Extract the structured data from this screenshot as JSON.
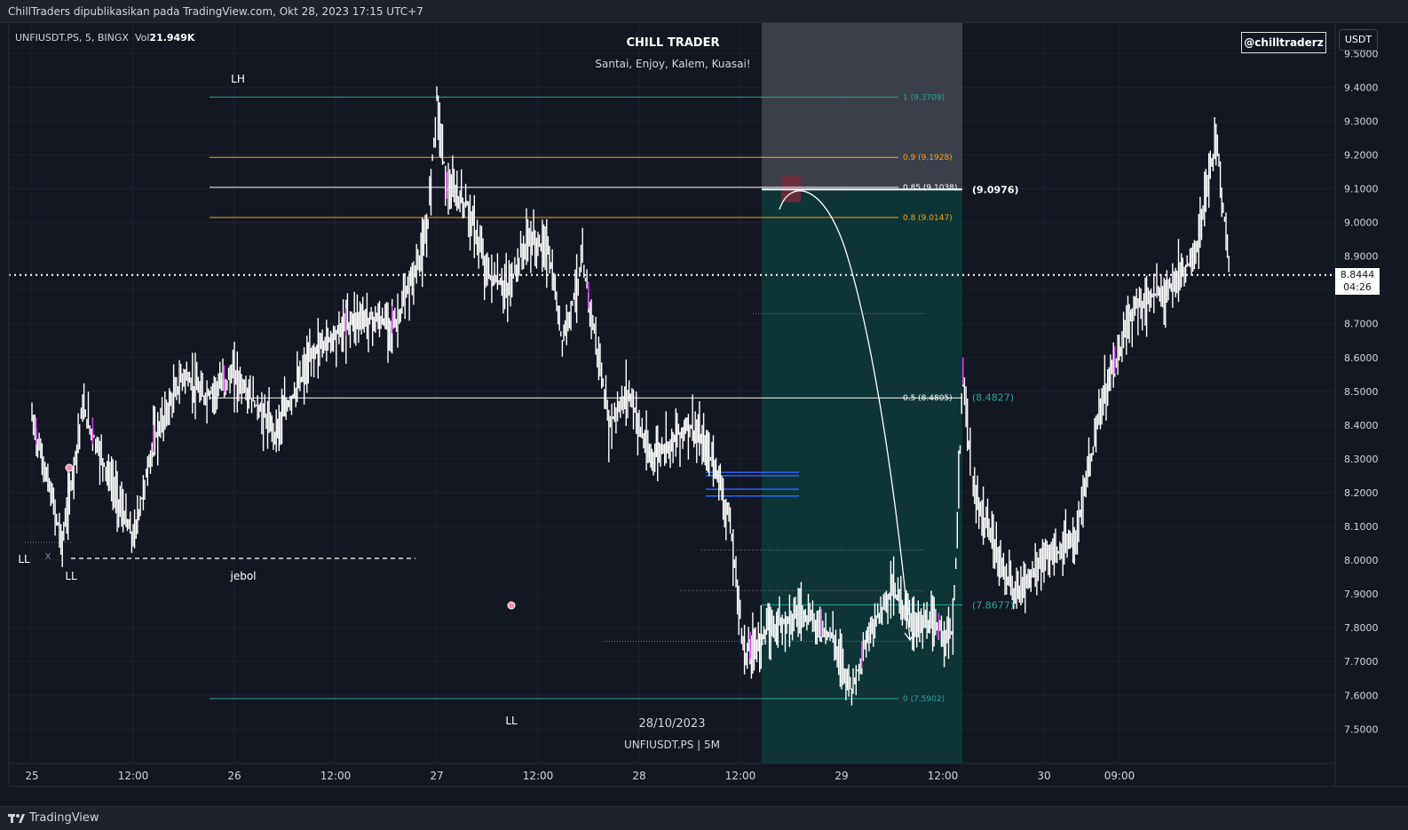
{
  "header": {
    "publish_note": "ChillTraders dipublikasikan pada TradingView.com, Okt 28, 2023 17:15 UTC+7"
  },
  "symbol_bar": {
    "symbol": "UNFIUSDT.PS, 5, BINGX",
    "vol_label": "Vol",
    "vol_value": "21.949K"
  },
  "branding": {
    "title": "CHILL TRADER",
    "subtitle": "Santai, Enjoy, Kalem, Kuasai!",
    "handle": "@chilltraderz",
    "footer_date": "28/10/2023",
    "footer_symbol": "UNFIUSDT.PS | 5M"
  },
  "currency_button": "USDT",
  "current_price": {
    "value": "8.8444",
    "countdown": "04:26"
  },
  "footer": {
    "logo_text": "TradingView"
  },
  "colors": {
    "background": "#131722",
    "candle": "#ffffff",
    "candle_down_accent": "#e040fb",
    "fib_teal": "#26a69a",
    "fib_orange": "#f7a21b",
    "fib_white": "#ffffff",
    "projection_zone": "#0d3b3b",
    "sell_zone": "#787b86",
    "order_lines": "#2962ff"
  },
  "chart_data": {
    "type": "line",
    "instrument": "UNFIUSDT.PS",
    "timeframe": "5",
    "ylim": [
      7.4,
      9.5
    ],
    "y_ticks": [
      "9.5000",
      "9.4000",
      "9.3000",
      "9.2000",
      "9.1000",
      "9.0000",
      "8.9000",
      "8.8000",
      "8.7000",
      "8.6000",
      "8.5000",
      "8.4000",
      "8.3000",
      "8.2000",
      "8.1000",
      "8.0000",
      "7.9000",
      "7.8000",
      "7.7000",
      "7.6000",
      "7.5000"
    ],
    "x_ticks": [
      "25",
      "12:00",
      "26",
      "12:00",
      "27",
      "12:00",
      "28",
      "12:00",
      "29",
      "12:00",
      "30",
      "09:00"
    ],
    "price_path": [
      {
        "t": 0.0,
        "p": 8.42
      },
      {
        "t": 0.1,
        "p": 8.18
      },
      {
        "t": 0.15,
        "p": 8.05
      },
      {
        "t": 0.25,
        "p": 8.45
      },
      {
        "t": 0.4,
        "p": 8.22
      },
      {
        "t": 0.5,
        "p": 8.06
      },
      {
        "t": 0.6,
        "p": 8.35
      },
      {
        "t": 0.75,
        "p": 8.55
      },
      {
        "t": 0.85,
        "p": 8.48
      },
      {
        "t": 1.0,
        "p": 8.55
      },
      {
        "t": 1.2,
        "p": 8.38
      },
      {
        "t": 1.4,
        "p": 8.62
      },
      {
        "t": 1.6,
        "p": 8.72
      },
      {
        "t": 1.8,
        "p": 8.7
      },
      {
        "t": 1.95,
        "p": 8.95
      },
      {
        "t": 2.0,
        "p": 9.37
      },
      {
        "t": 2.05,
        "p": 9.1
      },
      {
        "t": 2.15,
        "p": 9.05
      },
      {
        "t": 2.25,
        "p": 8.85
      },
      {
        "t": 2.35,
        "p": 8.8
      },
      {
        "t": 2.45,
        "p": 8.95
      },
      {
        "t": 2.55,
        "p": 8.92
      },
      {
        "t": 2.62,
        "p": 8.65
      },
      {
        "t": 2.72,
        "p": 8.88
      },
      {
        "t": 2.8,
        "p": 8.6
      },
      {
        "t": 2.85,
        "p": 8.4
      },
      {
        "t": 2.95,
        "p": 8.5
      },
      {
        "t": 3.05,
        "p": 8.3
      },
      {
        "t": 3.25,
        "p": 8.4
      },
      {
        "t": 3.38,
        "p": 8.28
      },
      {
        "t": 3.45,
        "p": 8.1
      },
      {
        "t": 3.52,
        "p": 7.72
      },
      {
        "t": 3.65,
        "p": 7.8
      },
      {
        "t": 3.8,
        "p": 7.85
      },
      {
        "t": 3.95,
        "p": 7.78
      },
      {
        "t": 4.05,
        "p": 7.62
      },
      {
        "t": 4.15,
        "p": 7.8
      },
      {
        "t": 4.25,
        "p": 7.92
      },
      {
        "t": 4.35,
        "p": 7.82
      },
      {
        "t": 4.45,
        "p": 7.8
      },
      {
        "t": 4.55,
        "p": 7.78
      },
      {
        "t": 4.6,
        "p": 8.55
      },
      {
        "t": 4.65,
        "p": 8.2
      },
      {
        "t": 4.75,
        "p": 8.05
      },
      {
        "t": 4.85,
        "p": 7.9
      },
      {
        "t": 5.0,
        "p": 8.0
      },
      {
        "t": 5.15,
        "p": 8.05
      },
      {
        "t": 5.3,
        "p": 8.5
      },
      {
        "t": 5.45,
        "p": 8.75
      },
      {
        "t": 5.6,
        "p": 8.8
      },
      {
        "t": 5.75,
        "p": 8.9
      },
      {
        "t": 5.85,
        "p": 9.25
      },
      {
        "t": 5.92,
        "p": 8.85
      }
    ],
    "time_axis": {
      "origin_label": "25",
      "px_per_day": 228,
      "x_origin": 36
    },
    "fib_levels": [
      {
        "label": "1 (9.3709)",
        "value": 9.3709,
        "style": "teal"
      },
      {
        "label": "0.9 (9.1928)",
        "value": 9.1928,
        "style": "orange"
      },
      {
        "label": "0.85 (9.1038)",
        "value": 9.1038,
        "style": "white"
      },
      {
        "label": "0.8 (9.0147)",
        "value": 9.0147,
        "style": "orange"
      },
      {
        "label": "0.5 (8.4805)",
        "value": 8.4805,
        "style": "white"
      },
      {
        "label": "0 (7.5902)",
        "value": 7.5902,
        "style": "teal"
      }
    ],
    "targets": [
      {
        "label": "(9.0976)",
        "value": 9.0976,
        "color": "#ffffff"
      },
      {
        "label": "(8.4827)",
        "value": 8.4827,
        "color": "#26a69a"
      },
      {
        "label": "(7.8677)",
        "value": 7.8677,
        "color": "#26a69a"
      }
    ],
    "annotations": [
      {
        "text": "LH"
      },
      {
        "text": "LL"
      },
      {
        "text": "LL"
      },
      {
        "text": "jebol"
      },
      {
        "text": "LL"
      },
      {
        "text": "x"
      }
    ],
    "order_levels": [
      8.26,
      8.25,
      8.21,
      8.19
    ],
    "dotted_levels": [
      8.73,
      8.03,
      7.91,
      7.76
    ]
  }
}
